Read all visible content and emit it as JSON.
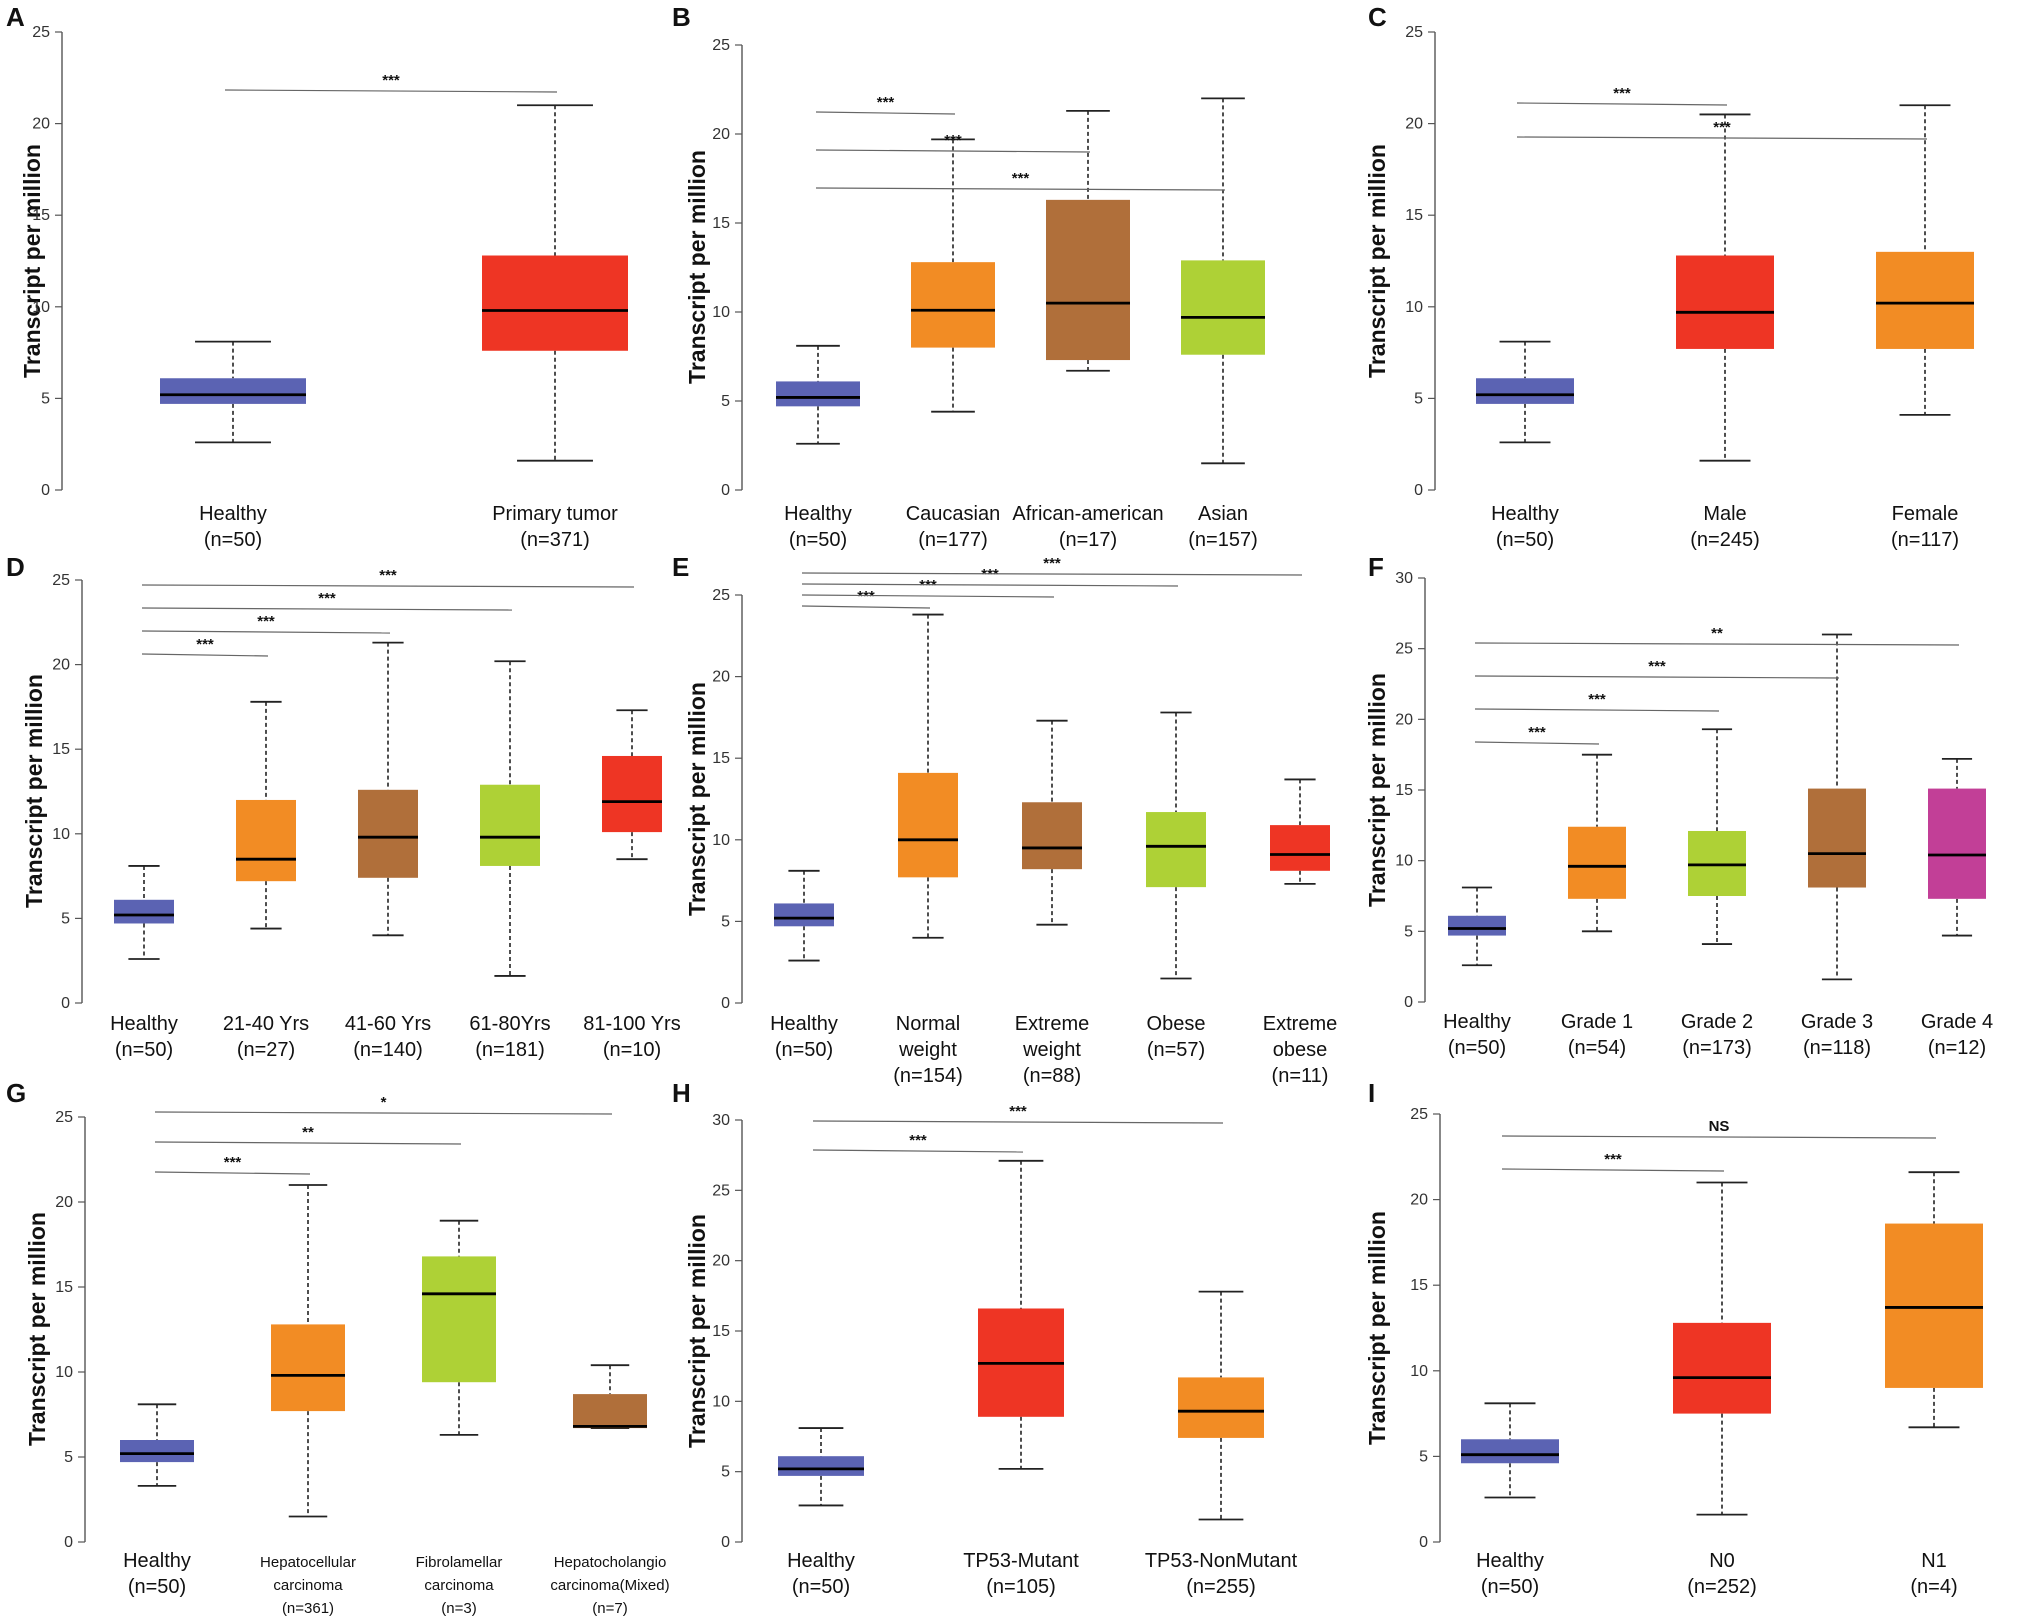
{
  "colors": {
    "blue": "#5b63b3",
    "red": "#ee3524",
    "orange": "#f28c24",
    "brown": "#b06f3a",
    "green": "#aed136",
    "magenta": "#c23f97"
  },
  "chart_data": [
    {
      "type": "box",
      "panel": "A",
      "ylabel": "Transcript per million",
      "ylim": [
        0,
        25
      ],
      "ticks": [
        0,
        5,
        10,
        15,
        20,
        25
      ],
      "boxes": [
        {
          "label": [
            "Healthy",
            "(n=50)"
          ],
          "color": "blue",
          "min": 2.6,
          "q1": 4.7,
          "median": 5.2,
          "q3": 6.1,
          "max": 8.1
        },
        {
          "label": [
            "Primary tumor",
            "(n=371)"
          ],
          "color": "red",
          "min": 1.6,
          "q1": 7.6,
          "median": 9.8,
          "q3": 12.8,
          "max": 21.0
        }
      ],
      "comparisons": [
        {
          "from": 0,
          "to": 1,
          "label": "***"
        }
      ]
    },
    {
      "type": "box",
      "panel": "B",
      "ylabel": "Transcript per million",
      "ylim": [
        0,
        25
      ],
      "ticks": [
        0,
        5,
        10,
        15,
        20,
        25
      ],
      "boxes": [
        {
          "label": [
            "Healthy",
            "(n=50)"
          ],
          "color": "blue",
          "min": 2.6,
          "q1": 4.7,
          "median": 5.2,
          "q3": 6.1,
          "max": 8.1
        },
        {
          "label": [
            "Caucasian",
            "(n=177)"
          ],
          "color": "orange",
          "min": 4.4,
          "q1": 8.0,
          "median": 10.1,
          "q3": 12.8,
          "max": 19.7
        },
        {
          "label": [
            "African-american",
            "(n=17)"
          ],
          "color": "brown",
          "min": 6.7,
          "q1": 7.3,
          "median": 10.5,
          "q3": 16.3,
          "max": 21.3
        },
        {
          "label": [
            "Asian",
            "(n=157)"
          ],
          "color": "green",
          "min": 1.5,
          "q1": 7.6,
          "median": 9.7,
          "q3": 12.9,
          "max": 22.0
        }
      ],
      "comparisons": [
        {
          "from": 0,
          "to": 1,
          "label": "***"
        },
        {
          "from": 0,
          "to": 2,
          "label": "***"
        },
        {
          "from": 0,
          "to": 3,
          "label": "***"
        }
      ]
    },
    {
      "type": "box",
      "panel": "C",
      "ylabel": "Transcript per million",
      "ylim": [
        0,
        25
      ],
      "ticks": [
        0,
        5,
        10,
        15,
        20,
        25
      ],
      "boxes": [
        {
          "label": [
            "Healthy",
            "(n=50)"
          ],
          "color": "blue",
          "min": 2.6,
          "q1": 4.7,
          "median": 5.2,
          "q3": 6.1,
          "max": 8.1
        },
        {
          "label": [
            "Male",
            "(n=245)"
          ],
          "color": "red",
          "min": 1.6,
          "q1": 7.7,
          "median": 9.7,
          "q3": 12.8,
          "max": 20.5
        },
        {
          "label": [
            "Female",
            "(n=117)"
          ],
          "color": "orange",
          "min": 4.1,
          "q1": 7.7,
          "median": 10.2,
          "q3": 13.0,
          "max": 21.0
        }
      ],
      "comparisons": [
        {
          "from": 0,
          "to": 1,
          "label": "***"
        },
        {
          "from": 0,
          "to": 2,
          "label": "***"
        }
      ]
    },
    {
      "type": "box",
      "panel": "D",
      "ylabel": "Transcript per million",
      "ylim": [
        0,
        25
      ],
      "ticks": [
        0,
        5,
        10,
        15,
        20,
        25
      ],
      "boxes": [
        {
          "label": [
            "Healthy",
            "(n=50)"
          ],
          "color": "blue",
          "min": 2.6,
          "q1": 4.7,
          "median": 5.2,
          "q3": 6.1,
          "max": 8.1
        },
        {
          "label": [
            "21-40 Yrs",
            "(n=27)"
          ],
          "color": "orange",
          "min": 4.4,
          "q1": 7.2,
          "median": 8.5,
          "q3": 12.0,
          "max": 17.8
        },
        {
          "label": [
            "41-60 Yrs",
            "(n=140)"
          ],
          "color": "brown",
          "min": 4.0,
          "q1": 7.4,
          "median": 9.8,
          "q3": 12.6,
          "max": 21.3
        },
        {
          "label": [
            "61-80Yrs",
            "(n=181)"
          ],
          "color": "green",
          "min": 1.6,
          "q1": 8.1,
          "median": 9.8,
          "q3": 12.9,
          "max": 20.2
        },
        {
          "label": [
            "81-100 Yrs",
            "(n=10)"
          ],
          "color": "red",
          "min": 8.5,
          "q1": 10.1,
          "median": 11.9,
          "q3": 14.6,
          "max": 17.3
        }
      ],
      "comparisons": [
        {
          "from": 0,
          "to": 1,
          "label": "***"
        },
        {
          "from": 0,
          "to": 2,
          "label": "***"
        },
        {
          "from": 0,
          "to": 3,
          "label": "***"
        },
        {
          "from": 0,
          "to": 4,
          "label": "***"
        }
      ]
    },
    {
      "type": "box",
      "panel": "E",
      "ylabel": "Transcript per million",
      "ylim": [
        0,
        25
      ],
      "ticks": [
        0,
        5,
        10,
        15,
        20,
        25
      ],
      "boxes": [
        {
          "label": [
            "Healthy",
            "(n=50)"
          ],
          "color": "blue",
          "min": 2.6,
          "q1": 4.7,
          "median": 5.2,
          "q3": 6.1,
          "max": 8.1
        },
        {
          "label": [
            "Normal",
            "weight",
            "(n=154)"
          ],
          "color": "orange",
          "min": 4.0,
          "q1": 7.7,
          "median": 10.0,
          "q3": 14.1,
          "max": 23.8
        },
        {
          "label": [
            "Extreme",
            "weight",
            "(n=88)"
          ],
          "color": "brown",
          "min": 4.8,
          "q1": 8.2,
          "median": 9.5,
          "q3": 12.3,
          "max": 17.3
        },
        {
          "label": [
            "Obese",
            "(n=57)"
          ],
          "color": "green",
          "min": 1.5,
          "q1": 7.1,
          "median": 9.6,
          "q3": 11.7,
          "max": 17.8
        },
        {
          "label": [
            "Extreme",
            "obese",
            "(n=11)"
          ],
          "color": "red",
          "min": 7.3,
          "q1": 8.1,
          "median": 9.1,
          "q3": 10.9,
          "max": 13.7
        }
      ],
      "comparisons": [
        {
          "from": 0,
          "to": 1,
          "label": "***"
        },
        {
          "from": 0,
          "to": 2,
          "label": "***"
        },
        {
          "from": 0,
          "to": 3,
          "label": "***"
        },
        {
          "from": 0,
          "to": 4,
          "label": "***"
        }
      ]
    },
    {
      "type": "box",
      "panel": "F",
      "ylabel": "Transcript per million",
      "ylim": [
        0,
        30
      ],
      "ticks": [
        0,
        5,
        10,
        15,
        20,
        25,
        30
      ],
      "boxes": [
        {
          "label": [
            "Healthy",
            "(n=50)"
          ],
          "color": "blue",
          "min": 2.6,
          "q1": 4.7,
          "median": 5.2,
          "q3": 6.1,
          "max": 8.1
        },
        {
          "label": [
            "Grade 1",
            "(n=54)"
          ],
          "color": "orange",
          "min": 5.0,
          "q1": 7.3,
          "median": 9.6,
          "q3": 12.4,
          "max": 17.5
        },
        {
          "label": [
            "Grade 2",
            "(n=173)"
          ],
          "color": "green",
          "min": 4.1,
          "q1": 7.5,
          "median": 9.7,
          "q3": 12.1,
          "max": 19.3
        },
        {
          "label": [
            "Grade 3",
            "(n=118)"
          ],
          "color": "brown",
          "min": 1.6,
          "q1": 8.1,
          "median": 10.5,
          "q3": 15.1,
          "max": 26.0
        },
        {
          "label": [
            "Grade 4",
            "(n=12)"
          ],
          "color": "magenta",
          "min": 4.7,
          "q1": 7.3,
          "median": 10.4,
          "q3": 15.1,
          "max": 17.2
        }
      ],
      "comparisons": [
        {
          "from": 0,
          "to": 1,
          "label": "***"
        },
        {
          "from": 0,
          "to": 2,
          "label": "***"
        },
        {
          "from": 0,
          "to": 3,
          "label": "***"
        },
        {
          "from": 0,
          "to": 4,
          "label": "**"
        }
      ]
    },
    {
      "type": "box",
      "panel": "G",
      "ylabel": "Transcript per million",
      "ylim": [
        0,
        25
      ],
      "ticks": [
        0,
        5,
        10,
        15,
        20,
        25
      ],
      "small_labels": true,
      "boxes": [
        {
          "label": [
            "Healthy",
            "(n=50)"
          ],
          "color": "blue",
          "min": 3.3,
          "q1": 4.7,
          "median": 5.2,
          "q3": 6.0,
          "max": 8.1
        },
        {
          "label": [
            "Hepatocellular",
            "carcinoma",
            "(n=361)"
          ],
          "color": "orange",
          "min": 1.5,
          "q1": 7.7,
          "median": 9.8,
          "q3": 12.8,
          "max": 21.0
        },
        {
          "label": [
            "Fibrolamellar",
            "carcinoma",
            "(n=3)"
          ],
          "color": "green",
          "min": 6.3,
          "q1": 9.4,
          "median": 14.6,
          "q3": 16.8,
          "max": 18.9
        },
        {
          "label": [
            "Hepatocholangio",
            "carcinoma(Mixed)",
            "(n=7)"
          ],
          "color": "brown",
          "min": 6.7,
          "q1": 6.7,
          "median": 6.8,
          "q3": 8.7,
          "max": 10.4
        }
      ],
      "comparisons": [
        {
          "from": 0,
          "to": 1,
          "label": "***"
        },
        {
          "from": 0,
          "to": 2,
          "label": "**"
        },
        {
          "from": 0,
          "to": 3,
          "label": "*"
        }
      ]
    },
    {
      "type": "box",
      "panel": "H",
      "ylabel": "Transcript per million",
      "ylim": [
        0,
        30
      ],
      "ticks": [
        0,
        5,
        10,
        15,
        20,
        25,
        30
      ],
      "boxes": [
        {
          "label": [
            "Healthy",
            "(n=50)"
          ],
          "color": "blue",
          "min": 2.6,
          "q1": 4.7,
          "median": 5.2,
          "q3": 6.1,
          "max": 8.1
        },
        {
          "label": [
            "TP53-Mutant",
            "(n=105)"
          ],
          "color": "red",
          "min": 5.2,
          "q1": 8.9,
          "median": 12.7,
          "q3": 16.6,
          "max": 27.1
        },
        {
          "label": [
            "TP53-NonMutant",
            "(n=255)"
          ],
          "color": "orange",
          "min": 1.6,
          "q1": 7.4,
          "median": 9.3,
          "q3": 11.7,
          "max": 17.8
        }
      ],
      "comparisons": [
        {
          "from": 0,
          "to": 1,
          "label": "***"
        },
        {
          "from": 0,
          "to": 2,
          "label": "***"
        }
      ]
    },
    {
      "type": "box",
      "panel": "I",
      "ylabel": "Transcript per million",
      "ylim": [
        0,
        25
      ],
      "ticks": [
        0,
        5,
        10,
        15,
        20,
        25
      ],
      "boxes": [
        {
          "label": [
            "Healthy",
            "(n=50)"
          ],
          "color": "blue",
          "min": 2.6,
          "q1": 4.6,
          "median": 5.1,
          "q3": 6.0,
          "max": 8.1
        },
        {
          "label": [
            "N0",
            "(n=252)"
          ],
          "color": "red",
          "min": 1.6,
          "q1": 7.5,
          "median": 9.6,
          "q3": 12.8,
          "max": 21.0
        },
        {
          "label": [
            "N1",
            "(n=4)"
          ],
          "color": "orange",
          "min": 6.7,
          "q1": 9.0,
          "median": 13.7,
          "q3": 18.6,
          "max": 21.6
        }
      ],
      "comparisons": [
        {
          "from": 0,
          "to": 1,
          "label": "***"
        },
        {
          "from": 0,
          "to": 2,
          "label": "NS"
        }
      ]
    }
  ]
}
